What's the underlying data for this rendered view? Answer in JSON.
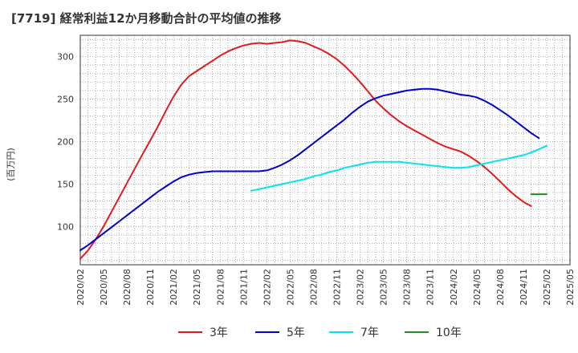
{
  "title": "[7719]  経常利益12か月移動合計の平均値の推移",
  "chart_data": {
    "type": "line",
    "title": "[7719]  経常利益12か月移動合計の平均値の推移",
    "xlabel": "",
    "ylabel": "(百万円)",
    "x_ticks": [
      "2020/02",
      "2020/05",
      "2020/08",
      "2020/11",
      "2021/02",
      "2021/05",
      "2021/08",
      "2021/11",
      "2022/02",
      "2022/05",
      "2022/08",
      "2022/11",
      "2023/02",
      "2023/05",
      "2023/08",
      "2023/11",
      "2024/02",
      "2024/05",
      "2024/08",
      "2024/11",
      "2025/02",
      "2025/05"
    ],
    "y_ticks": [
      100,
      150,
      200,
      250,
      300
    ],
    "ylim": [
      55,
      325
    ],
    "grid": true,
    "legend_position": "bottom",
    "series": [
      {
        "name": "3年",
        "color": "#e31a1c",
        "points": [
          [
            "2020/02",
            62
          ],
          [
            "2020/03",
            72
          ],
          [
            "2020/04",
            85
          ],
          [
            "2020/05",
            100
          ],
          [
            "2020/06",
            117
          ],
          [
            "2020/07",
            134
          ],
          [
            "2020/08",
            151
          ],
          [
            "2020/09",
            168
          ],
          [
            "2020/10",
            185
          ],
          [
            "2020/11",
            201
          ],
          [
            "2020/12",
            218
          ],
          [
            "2021/01",
            236
          ],
          [
            "2021/02",
            253
          ],
          [
            "2021/03",
            267
          ],
          [
            "2021/04",
            277
          ],
          [
            "2021/05",
            283
          ],
          [
            "2021/06",
            289
          ],
          [
            "2021/07",
            295
          ],
          [
            "2021/08",
            301
          ],
          [
            "2021/09",
            306
          ],
          [
            "2021/10",
            310
          ],
          [
            "2021/11",
            313
          ],
          [
            "2021/12",
            315
          ],
          [
            "2022/01",
            316
          ],
          [
            "2022/02",
            315
          ],
          [
            "2022/03",
            316
          ],
          [
            "2022/04",
            317
          ],
          [
            "2022/05",
            319
          ],
          [
            "2022/06",
            318
          ],
          [
            "2022/07",
            316
          ],
          [
            "2022/08",
            312
          ],
          [
            "2022/09",
            308
          ],
          [
            "2022/10",
            303
          ],
          [
            "2022/11",
            297
          ],
          [
            "2022/12",
            289
          ],
          [
            "2023/01",
            280
          ],
          [
            "2023/02",
            270
          ],
          [
            "2023/03",
            259
          ],
          [
            "2023/04",
            248
          ],
          [
            "2023/05",
            239
          ],
          [
            "2023/06",
            231
          ],
          [
            "2023/07",
            224
          ],
          [
            "2023/08",
            218
          ],
          [
            "2023/09",
            213
          ],
          [
            "2023/10",
            208
          ],
          [
            "2023/11",
            203
          ],
          [
            "2023/12",
            198
          ],
          [
            "2024/01",
            194
          ],
          [
            "2024/02",
            191
          ],
          [
            "2024/03",
            188
          ],
          [
            "2024/04",
            183
          ],
          [
            "2024/05",
            177
          ],
          [
            "2024/06",
            170
          ],
          [
            "2024/07",
            162
          ],
          [
            "2024/08",
            153
          ],
          [
            "2024/09",
            144
          ],
          [
            "2024/10",
            136
          ],
          [
            "2024/11",
            129
          ],
          [
            "2024/12",
            124
          ]
        ]
      },
      {
        "name": "5年",
        "color": "#0000cc",
        "points": [
          [
            "2020/02",
            72
          ],
          [
            "2020/03",
            78
          ],
          [
            "2020/04",
            85
          ],
          [
            "2020/05",
            92
          ],
          [
            "2020/06",
            99
          ],
          [
            "2020/07",
            106
          ],
          [
            "2020/08",
            113
          ],
          [
            "2020/09",
            120
          ],
          [
            "2020/10",
            127
          ],
          [
            "2020/11",
            134
          ],
          [
            "2020/12",
            141
          ],
          [
            "2021/01",
            147
          ],
          [
            "2021/02",
            153
          ],
          [
            "2021/03",
            158
          ],
          [
            "2021/04",
            161
          ],
          [
            "2021/05",
            163
          ],
          [
            "2021/06",
            164
          ],
          [
            "2021/07",
            165
          ],
          [
            "2021/08",
            165
          ],
          [
            "2021/09",
            165
          ],
          [
            "2021/10",
            165
          ],
          [
            "2021/11",
            165
          ],
          [
            "2021/12",
            165
          ],
          [
            "2022/01",
            165
          ],
          [
            "2022/02",
            166
          ],
          [
            "2022/03",
            169
          ],
          [
            "2022/04",
            173
          ],
          [
            "2022/05",
            178
          ],
          [
            "2022/06",
            184
          ],
          [
            "2022/07",
            191
          ],
          [
            "2022/08",
            198
          ],
          [
            "2022/09",
            205
          ],
          [
            "2022/10",
            212
          ],
          [
            "2022/11",
            219
          ],
          [
            "2022/12",
            226
          ],
          [
            "2023/01",
            234
          ],
          [
            "2023/02",
            241
          ],
          [
            "2023/03",
            247
          ],
          [
            "2023/04",
            251
          ],
          [
            "2023/05",
            254
          ],
          [
            "2023/06",
            256
          ],
          [
            "2023/07",
            258
          ],
          [
            "2023/08",
            260
          ],
          [
            "2023/09",
            261
          ],
          [
            "2023/10",
            262
          ],
          [
            "2023/11",
            262
          ],
          [
            "2023/12",
            261
          ],
          [
            "2024/01",
            259
          ],
          [
            "2024/02",
            257
          ],
          [
            "2024/03",
            255
          ],
          [
            "2024/04",
            254
          ],
          [
            "2024/05",
            252
          ],
          [
            "2024/06",
            248
          ],
          [
            "2024/07",
            243
          ],
          [
            "2024/08",
            237
          ],
          [
            "2024/09",
            231
          ],
          [
            "2024/10",
            224
          ],
          [
            "2024/11",
            217
          ],
          [
            "2024/12",
            210
          ],
          [
            "2025/01",
            204
          ]
        ]
      },
      {
        "name": "7年",
        "color": "#00e5ee",
        "points": [
          [
            "2021/12",
            142
          ],
          [
            "2022/01",
            144
          ],
          [
            "2022/02",
            146
          ],
          [
            "2022/03",
            148
          ],
          [
            "2022/04",
            150
          ],
          [
            "2022/05",
            152
          ],
          [
            "2022/06",
            154
          ],
          [
            "2022/07",
            156
          ],
          [
            "2022/08",
            159
          ],
          [
            "2022/09",
            161
          ],
          [
            "2022/10",
            164
          ],
          [
            "2022/11",
            166
          ],
          [
            "2022/12",
            169
          ],
          [
            "2023/01",
            171
          ],
          [
            "2023/02",
            173
          ],
          [
            "2023/03",
            175
          ],
          [
            "2023/04",
            176
          ],
          [
            "2023/05",
            176
          ],
          [
            "2023/06",
            176
          ],
          [
            "2023/07",
            176
          ],
          [
            "2023/08",
            175
          ],
          [
            "2023/09",
            174
          ],
          [
            "2023/10",
            173
          ],
          [
            "2023/11",
            172
          ],
          [
            "2023/12",
            171
          ],
          [
            "2024/01",
            170
          ],
          [
            "2024/02",
            169
          ],
          [
            "2024/03",
            169
          ],
          [
            "2024/04",
            170
          ],
          [
            "2024/05",
            172
          ],
          [
            "2024/06",
            174
          ],
          [
            "2024/07",
            176
          ],
          [
            "2024/08",
            178
          ],
          [
            "2024/09",
            180
          ],
          [
            "2024/10",
            182
          ],
          [
            "2024/11",
            184
          ],
          [
            "2024/12",
            187
          ],
          [
            "2025/01",
            191
          ],
          [
            "2025/02",
            195
          ]
        ]
      },
      {
        "name": "10年",
        "color": "#228b22",
        "points": [
          [
            "2024/12",
            138
          ],
          [
            "2025/02",
            138
          ]
        ]
      }
    ]
  }
}
